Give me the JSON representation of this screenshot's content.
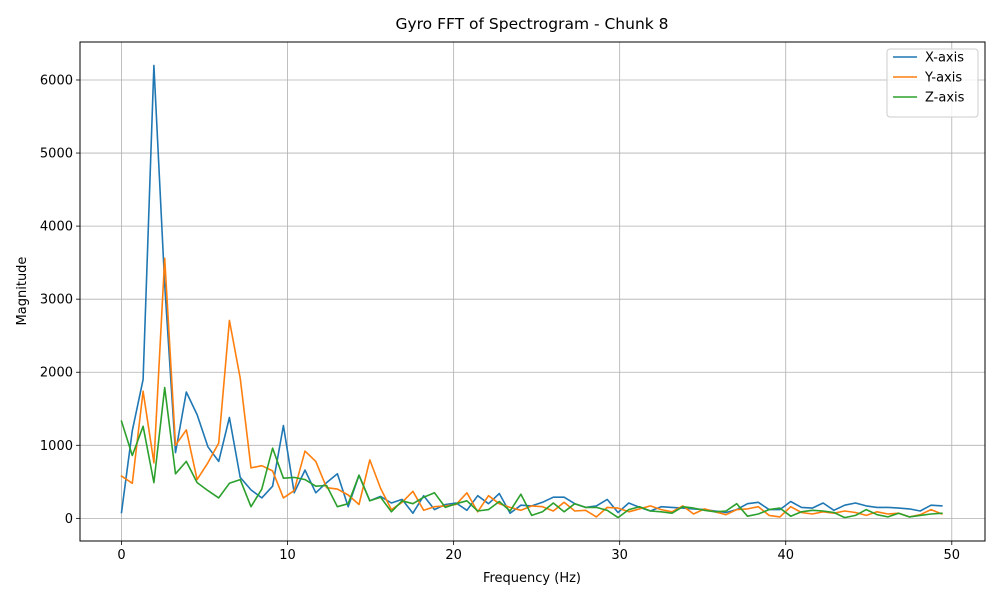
{
  "chart_data": {
    "type": "line",
    "title": "Gyro FFT of Spectrogram - Chunk 8",
    "xlabel": "Frequency (Hz)",
    "ylabel": "Magnitude",
    "xlim": [
      -2.5,
      52
    ],
    "ylim": [
      -310,
      6520
    ],
    "xticks": [
      0,
      10,
      20,
      30,
      40,
      50
    ],
    "yticks": [
      0,
      1000,
      2000,
      3000,
      4000,
      5000,
      6000
    ],
    "grid": true,
    "legend_position": "top-right",
    "x": [
      0,
      0.65,
      1.3,
      1.95,
      2.6,
      3.25,
      3.9,
      4.55,
      5.2,
      5.85,
      6.5,
      7.15,
      7.8,
      8.45,
      9.1,
      9.75,
      10.4,
      11.05,
      11.7,
      12.35,
      13.0,
      13.65,
      14.3,
      14.95,
      15.6,
      16.25,
      16.9,
      17.55,
      18.2,
      18.85,
      19.5,
      20.15,
      20.8,
      21.45,
      22.1,
      22.75,
      23.4,
      24.05,
      24.7,
      25.35,
      26.0,
      26.65,
      27.3,
      27.95,
      28.6,
      29.25,
      29.9,
      30.55,
      31.2,
      31.85,
      32.5,
      33.15,
      33.8,
      34.45,
      35.1,
      35.75,
      36.4,
      37.05,
      37.7,
      38.35,
      39.0,
      39.65,
      40.3,
      40.95,
      41.6,
      42.25,
      42.9,
      43.55,
      44.2,
      44.85,
      45.5,
      46.15,
      46.8,
      47.45,
      48.1,
      48.75,
      49.4
    ],
    "series": [
      {
        "name": "X-axis",
        "color": "#1f77b4",
        "values": [
          80,
          1200,
          1900,
          6200,
          3200,
          900,
          1730,
          1420,
          980,
          780,
          1380,
          560,
          390,
          280,
          440,
          1270,
          350,
          660,
          350,
          490,
          610,
          160,
          590,
          240,
          300,
          210,
          260,
          70,
          310,
          120,
          190,
          210,
          110,
          310,
          200,
          340,
          70,
          180,
          170,
          220,
          290,
          290,
          200,
          150,
          170,
          260,
          80,
          210,
          150,
          100,
          160,
          150,
          140,
          130,
          120,
          100,
          80,
          120,
          200,
          220,
          120,
          120,
          230,
          150,
          140,
          210,
          110,
          180,
          210,
          170,
          150,
          150,
          140,
          130,
          100,
          180,
          170
        ]
      },
      {
        "name": "Y-axis",
        "color": "#ff7f0e",
        "values": [
          580,
          480,
          1740,
          760,
          3560,
          1000,
          1210,
          530,
          760,
          1030,
          2710,
          1920,
          690,
          720,
          650,
          280,
          380,
          920,
          780,
          420,
          400,
          320,
          190,
          800,
          410,
          120,
          220,
          370,
          110,
          160,
          170,
          190,
          350,
          90,
          310,
          200,
          150,
          110,
          170,
          160,
          100,
          220,
          100,
          110,
          20,
          150,
          140,
          90,
          130,
          170,
          120,
          90,
          170,
          60,
          130,
          90,
          50,
          120,
          130,
          160,
          40,
          20,
          160,
          80,
          60,
          90,
          70,
          100,
          80,
          40,
          90,
          60,
          70,
          20,
          50,
          120,
          60
        ]
      },
      {
        "name": "Z-axis",
        "color": "#2ca02c",
        "values": [
          1330,
          860,
          1260,
          490,
          1790,
          610,
          780,
          490,
          380,
          280,
          480,
          530,
          160,
          400,
          960,
          550,
          560,
          530,
          440,
          450,
          160,
          200,
          590,
          240,
          290,
          90,
          240,
          200,
          290,
          350,
          150,
          200,
          240,
          100,
          120,
          230,
          100,
          330,
          40,
          90,
          210,
          90,
          200,
          150,
          150,
          110,
          10,
          120,
          160,
          100,
          90,
          70,
          160,
          140,
          110,
          90,
          100,
          200,
          30,
          60,
          120,
          140,
          30,
          90,
          110,
          100,
          80,
          10,
          40,
          120,
          50,
          20,
          70,
          20,
          40,
          60,
          70
        ]
      }
    ]
  }
}
